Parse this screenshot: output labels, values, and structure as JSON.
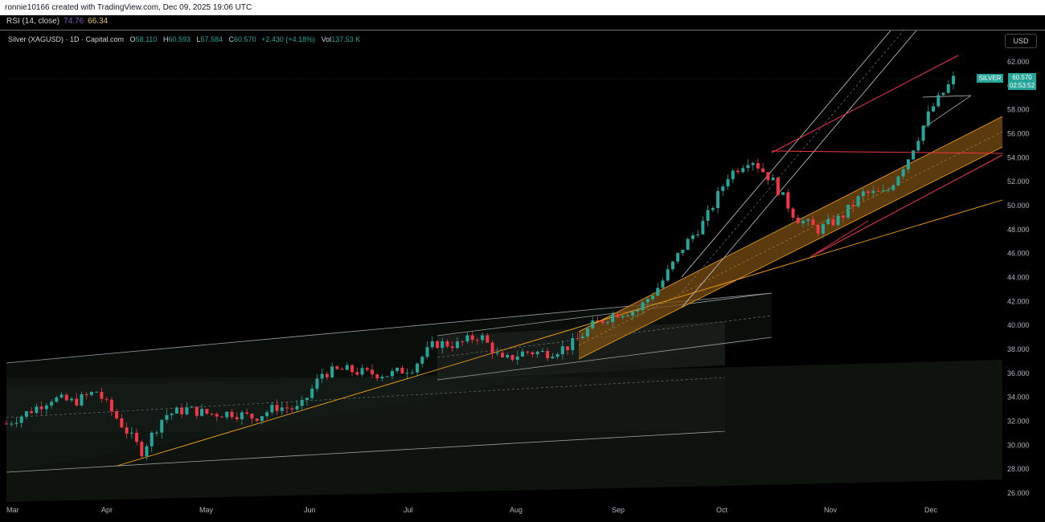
{
  "header": {
    "credit": "ronnie10166 created with TradingView.com, Dec 09, 2025 19:06 UTC"
  },
  "rsi": {
    "label": "RSI (14, close)",
    "value1": "74.76",
    "value2": "66.34"
  },
  "legend": {
    "symbol": "Silver (XAGUSD) · 1D · Capital.com",
    "open_label": "O",
    "open": "58.110",
    "high_label": "H",
    "high": "60.593",
    "low_label": "L",
    "low": "57.584",
    "close_label": "C",
    "close": "60.570",
    "change": "+2.430 (+4.18%)",
    "vol_label": "Vol",
    "volume": "137.53 K"
  },
  "currency_button": "USD",
  "price_tag": {
    "price": "60.570",
    "countdown": "02:53:52",
    "symbol": "SILVER"
  },
  "colors": {
    "up": "#26a69a",
    "down": "#f23645",
    "background": "#000000",
    "trendline": "#f23645",
    "channel": "#f7a21b"
  },
  "chart_data": {
    "type": "candlestick",
    "y_ticks": [
      "62.000",
      "60.000",
      "58.000",
      "56.000",
      "54.000",
      "52.000",
      "50.000",
      "48.000",
      "46.000",
      "44.000",
      "42.000",
      "40.000",
      "38.000",
      "36.000",
      "34.000",
      "32.000",
      "30.000",
      "28.000",
      "26.000"
    ],
    "x_ticks": [
      "Mar",
      "Apr",
      "May",
      "Jun",
      "Jul",
      "Aug",
      "Sep",
      "Oct",
      "Nov",
      "Dec"
    ],
    "ylim": [
      25,
      64
    ],
    "series": [
      {
        "name": "Silver (XAGUSD)",
        "x": [
          "2025-03-03",
          "2025-03-10",
          "2025-03-17",
          "2025-03-24",
          "2025-03-31",
          "2025-04-03",
          "2025-04-07",
          "2025-04-14",
          "2025-04-21",
          "2025-04-28",
          "2025-05-05",
          "2025-05-12",
          "2025-05-19",
          "2025-05-26",
          "2025-06-02",
          "2025-06-09",
          "2025-06-16",
          "2025-06-23",
          "2025-06-30",
          "2025-07-07",
          "2025-07-14",
          "2025-07-21",
          "2025-07-28",
          "2025-08-04",
          "2025-08-11",
          "2025-08-18",
          "2025-08-25",
          "2025-09-01",
          "2025-09-08",
          "2025-09-15",
          "2025-09-22",
          "2025-09-29",
          "2025-10-06",
          "2025-10-13",
          "2025-10-16",
          "2025-10-20",
          "2025-10-27",
          "2025-11-03",
          "2025-11-10",
          "2025-11-17",
          "2025-11-24",
          "2025-12-01",
          "2025-12-09"
        ],
        "close": [
          31.8,
          32.8,
          33.9,
          33.6,
          34.5,
          32.0,
          29.5,
          32.5,
          33.0,
          32.6,
          32.7,
          32.3,
          33.2,
          33.0,
          36.0,
          36.3,
          36.0,
          35.9,
          36.5,
          38.5,
          38.4,
          39.2,
          37.0,
          37.8,
          37.7,
          38.3,
          40.0,
          41.0,
          41.3,
          43.4,
          46.5,
          48.8,
          52.5,
          54.0,
          52.0,
          49.0,
          48.0,
          49.0,
          51.0,
          51.0,
          54.0,
          58.0,
          60.57
        ],
        "ohlc_note": "O 58.110 H 60.593 L 57.584 C 60.570"
      }
    ],
    "annotations": [
      "ascending channel (white)",
      "ascending channel (orange, filled)",
      "red trendlines",
      "orange trendline",
      "white rising wedge"
    ]
  }
}
